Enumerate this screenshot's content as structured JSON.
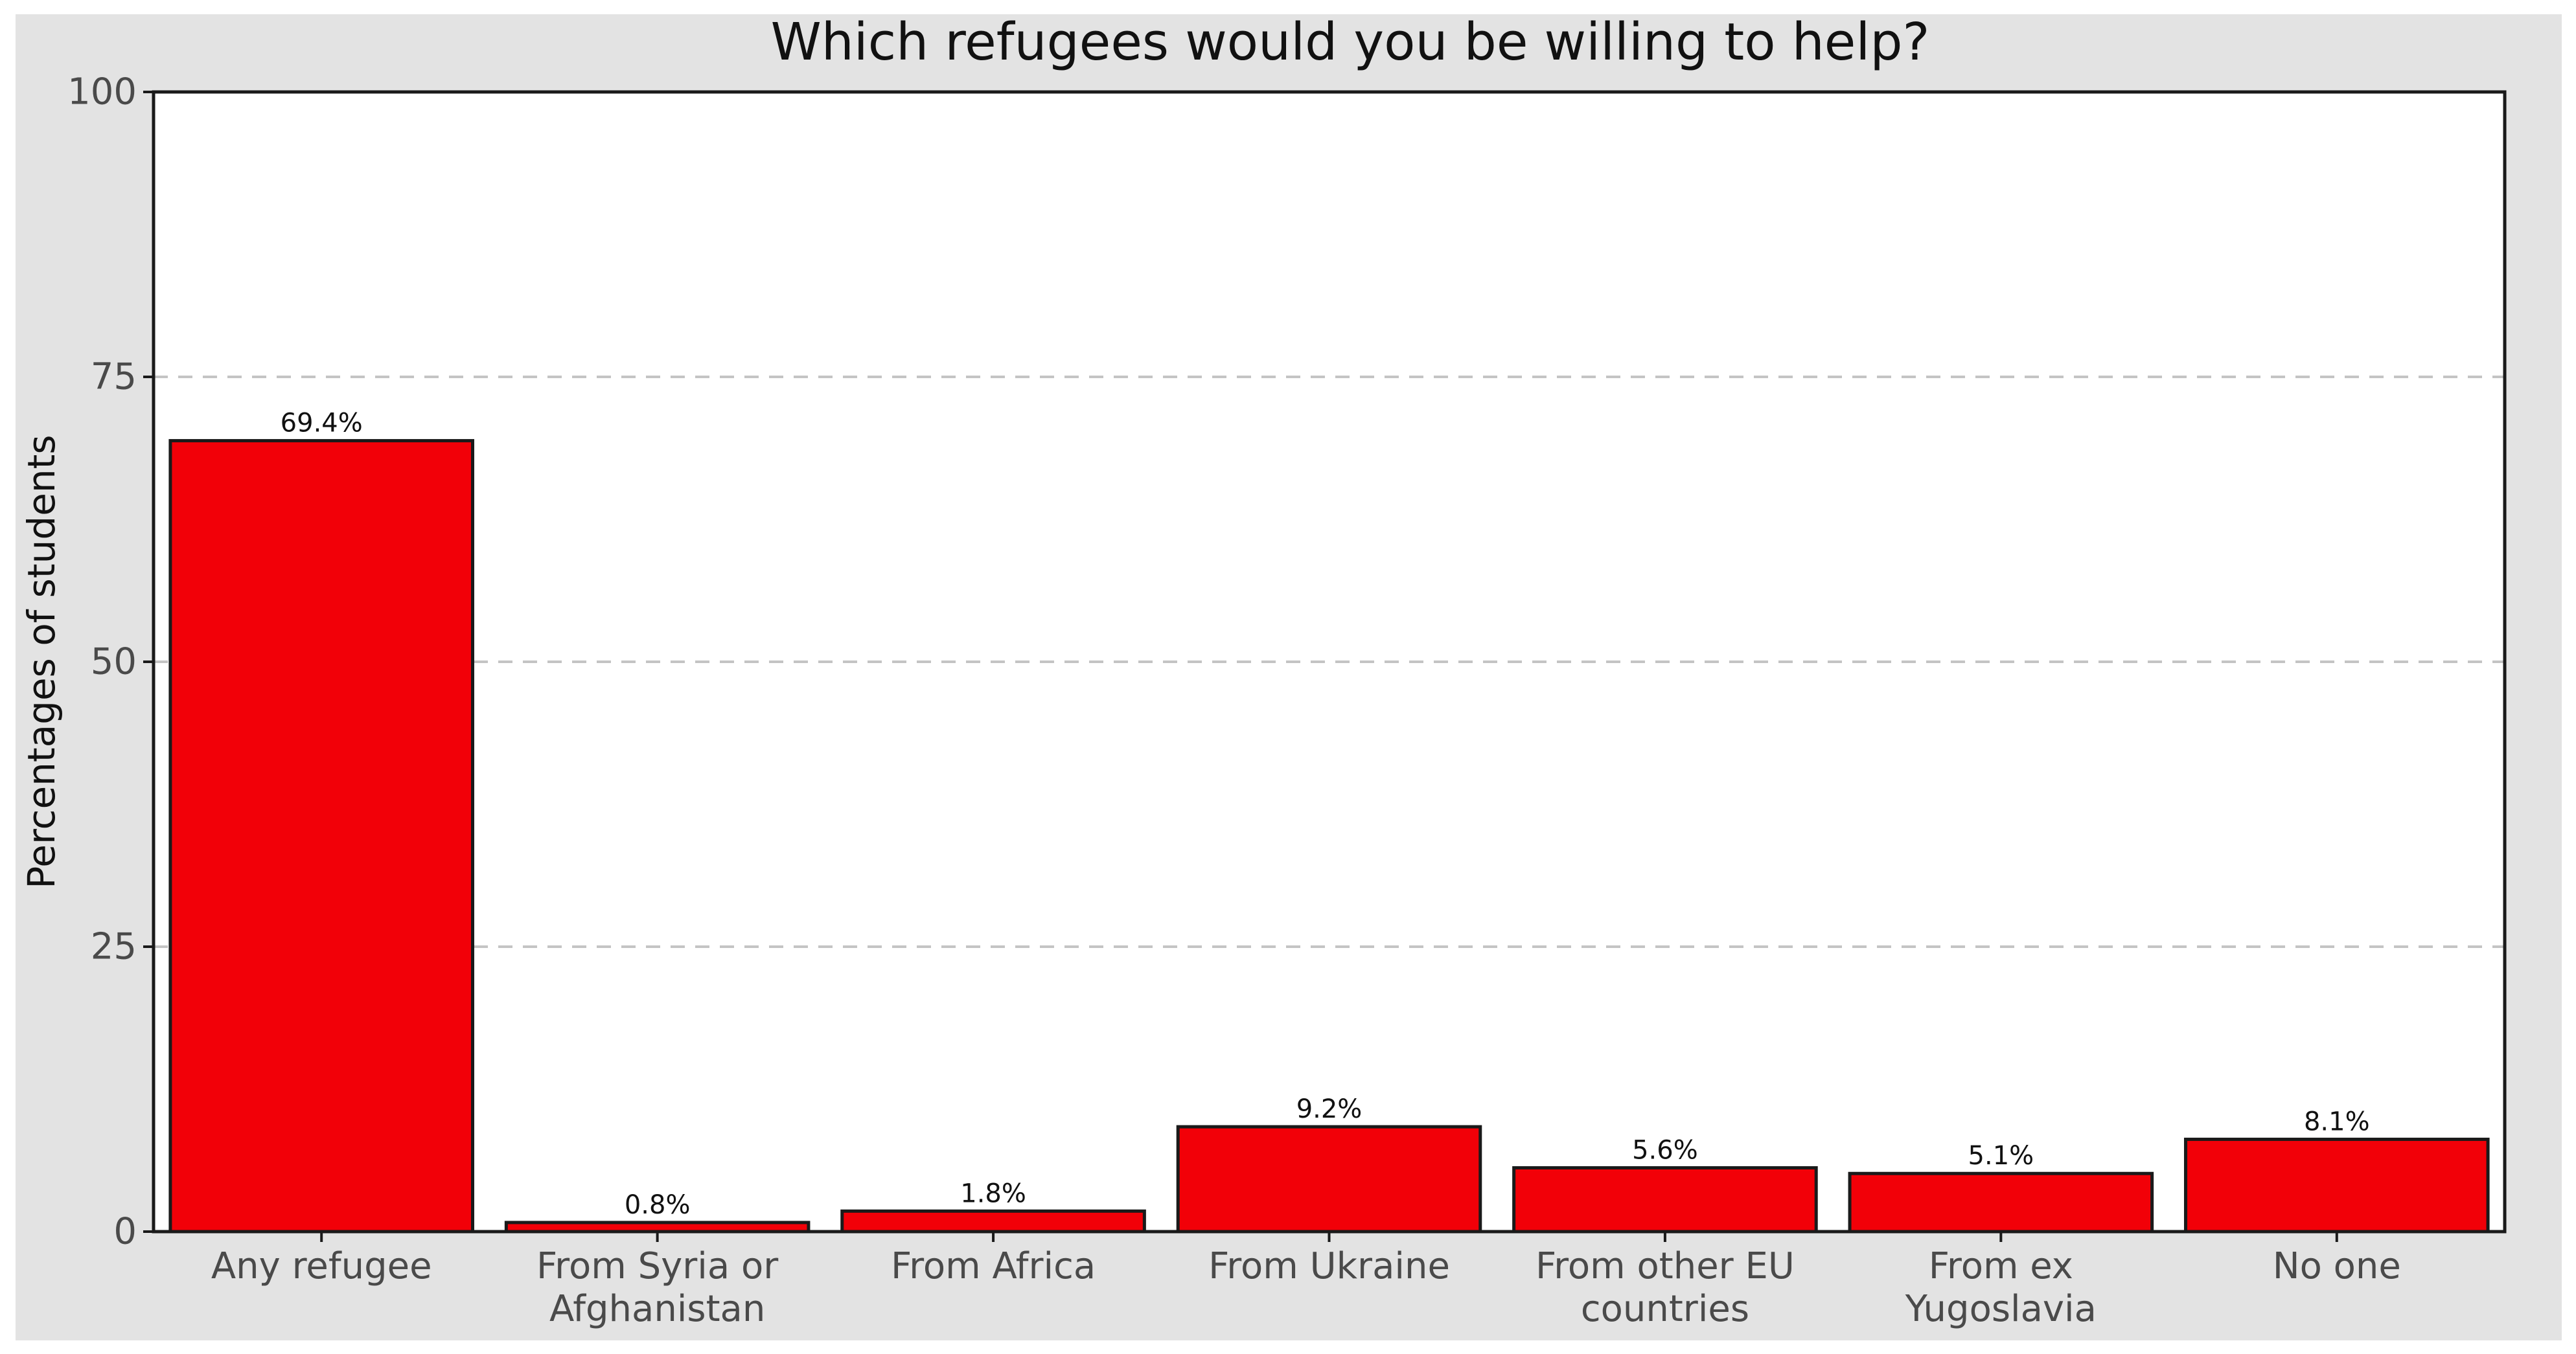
{
  "chart_data": {
    "type": "bar",
    "title": "Which refugees would you be willing to help?",
    "xlabel": "",
    "ylabel": "Percentages of students",
    "ylim": [
      0,
      100
    ],
    "yticks": [
      {
        "value": 0,
        "label": "0"
      },
      {
        "value": 25,
        "label": "25"
      },
      {
        "value": 50,
        "label": "50"
      },
      {
        "value": 75,
        "label": "75"
      },
      {
        "value": 100,
        "label": "100"
      }
    ],
    "grid": "horizontal dashed at 25, 50, 75",
    "legend": "none",
    "categories": [
      {
        "lines": [
          "Any refugee"
        ]
      },
      {
        "lines": [
          "From Syria or",
          "Afghanistan"
        ]
      },
      {
        "lines": [
          "From Africa"
        ]
      },
      {
        "lines": [
          "From Ukraine"
        ]
      },
      {
        "lines": [
          "From other EU",
          "countries"
        ]
      },
      {
        "lines": [
          "From ex",
          "Yugoslavia"
        ]
      },
      {
        "lines": [
          "No one"
        ]
      }
    ],
    "values": [
      69.4,
      0.8,
      1.8,
      9.2,
      5.6,
      5.1,
      8.1
    ],
    "value_labels": [
      "69.4%",
      "0.8%",
      "1.8%",
      "9.2%",
      "5.6%",
      "5.1%",
      "8.1%"
    ],
    "colors": {
      "bar_fill": "#f20008",
      "bar_stroke": "#1a1a1a",
      "panel_background": "#ffffff",
      "figure_background": "#e3e3e3",
      "grid": "#c4c4c4",
      "axis": "#1a1a1a"
    }
  }
}
